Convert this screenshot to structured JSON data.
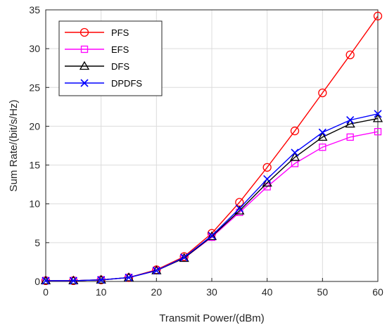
{
  "chart_data": {
    "type": "line",
    "xlabel": "Transmit Power/(dBm)",
    "ylabel": "Sum Rate/(bit/s/Hz)",
    "xlim": [
      0,
      60
    ],
    "ylim": [
      0,
      35
    ],
    "xticks": [
      0,
      10,
      20,
      30,
      40,
      50,
      60
    ],
    "yticks": [
      0,
      5,
      10,
      15,
      20,
      25,
      30,
      35
    ],
    "grid": true,
    "legend_position": "top-left",
    "x": [
      0,
      5,
      10,
      15,
      20,
      25,
      30,
      35,
      40,
      45,
      50,
      55,
      60
    ],
    "series": [
      {
        "name": "PFS",
        "color": "#ff0000",
        "marker": "circle",
        "values": [
          0.1,
          0.1,
          0.2,
          0.5,
          1.5,
          3.2,
          6.2,
          10.2,
          14.7,
          19.4,
          24.3,
          29.2,
          34.2
        ]
      },
      {
        "name": "EFS",
        "color": "#ff00ff",
        "marker": "square",
        "values": [
          0.1,
          0.1,
          0.2,
          0.5,
          1.4,
          3.0,
          5.7,
          8.9,
          12.2,
          15.2,
          17.3,
          18.6,
          19.3
        ]
      },
      {
        "name": "DFS",
        "color": "#000000",
        "marker": "triangle",
        "values": [
          0.1,
          0.1,
          0.2,
          0.5,
          1.4,
          3.0,
          5.8,
          9.1,
          12.7,
          16.0,
          18.6,
          20.3,
          21.0
        ]
      },
      {
        "name": "DPDFS",
        "color": "#0000ff",
        "marker": "x",
        "values": [
          0.1,
          0.1,
          0.2,
          0.5,
          1.4,
          3.1,
          5.9,
          9.4,
          13.2,
          16.6,
          19.2,
          20.8,
          21.6
        ]
      }
    ]
  }
}
